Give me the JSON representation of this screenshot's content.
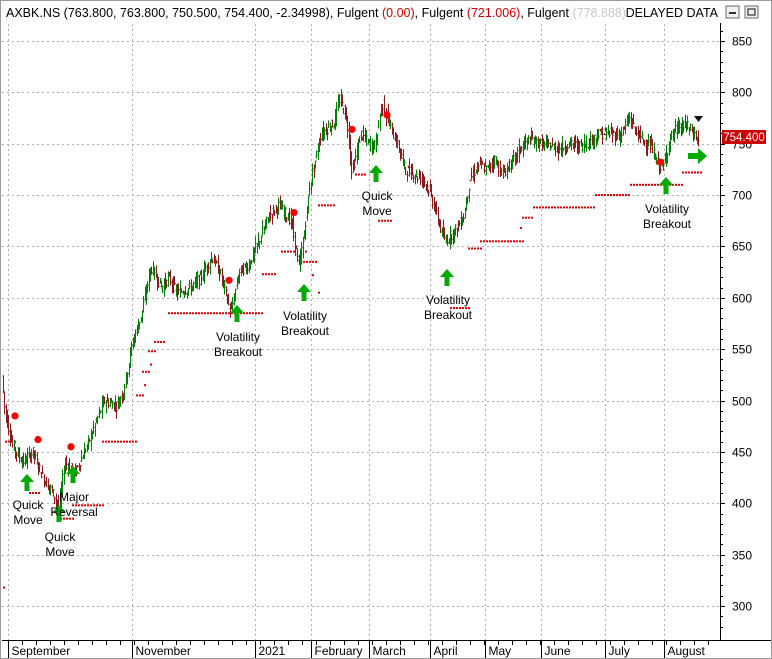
{
  "header": {
    "symbol": "AXBK.NS",
    "ohlc": "(763.800, 763.800, 750.500, 754.400, -2.34998)",
    "ind1_name": "Fulgent",
    "ind1_val": "(0.00)",
    "ind2_name": "Fulgent",
    "ind2_val": "(721.006)",
    "ind3_name": "Fulgent",
    "ind3_val": "(778.888)",
    "delayed": "DELAYED DATA",
    "colors": {
      "symbol": "#000000",
      "ind_name": "#000000",
      "ind_val": "#cc0000",
      "ind3_val": "#c8c8c8",
      "delayed": "#000000"
    }
  },
  "price_tag": {
    "value": "754.400",
    "bg": "#cc0000",
    "fg": "#ffffff"
  },
  "icons": {
    "minimize": "minimize-icon",
    "maximize": "maximize-icon",
    "arrow_right": "green-right-arrow-icon",
    "arrow_up": "green-up-arrow-icon",
    "last_bar_marker": "dark-chevron-marker-icon"
  },
  "chart_data": {
    "type": "candlestick-ohlc",
    "ylim": [
      275,
      865
    ],
    "y_ticks": [
      300,
      350,
      400,
      450,
      500,
      550,
      600,
      650,
      700,
      750,
      800,
      850
    ],
    "x_month_labels": [
      "September",
      "November",
      "2021",
      "February",
      "March",
      "April",
      "May",
      "June",
      "July",
      "August"
    ],
    "grid": true,
    "colors": {
      "up": "#008000",
      "down": "#8b1a1a",
      "stop_dots": "#e00000",
      "signal_dot": "#ff0000",
      "arrow": "#00aa00"
    },
    "price_path": [
      [
        0,
        460
      ],
      [
        2,
        535
      ],
      [
        6,
        490
      ],
      [
        14,
        455
      ],
      [
        24,
        440
      ],
      [
        34,
        450
      ],
      [
        44,
        425
      ],
      [
        54,
        410
      ],
      [
        60,
        395
      ],
      [
        66,
        440
      ],
      [
        76,
        430
      ],
      [
        90,
        460
      ],
      [
        105,
        500
      ],
      [
        118,
        495
      ],
      [
        125,
        510
      ],
      [
        133,
        555
      ],
      [
        143,
        585
      ],
      [
        152,
        630
      ],
      [
        163,
        610
      ],
      [
        170,
        620
      ],
      [
        178,
        605
      ],
      [
        192,
        610
      ],
      [
        202,
        620
      ],
      [
        213,
        640
      ],
      [
        222,
        622
      ],
      [
        232,
        585
      ],
      [
        240,
        625
      ],
      [
        250,
        632
      ],
      [
        262,
        660
      ],
      [
        270,
        680
      ],
      [
        280,
        690
      ],
      [
        292,
        675
      ],
      [
        300,
        630
      ],
      [
        305,
        660
      ],
      [
        311,
        710
      ],
      [
        322,
        760
      ],
      [
        335,
        770
      ],
      [
        341,
        795
      ],
      [
        348,
        772
      ],
      [
        353,
        722
      ],
      [
        362,
        760
      ],
      [
        370,
        750
      ],
      [
        376,
        748
      ],
      [
        383,
        790
      ],
      [
        392,
        765
      ],
      [
        400,
        745
      ],
      [
        406,
        725
      ],
      [
        416,
        720
      ],
      [
        425,
        715
      ],
      [
        432,
        700
      ],
      [
        441,
        670
      ],
      [
        446,
        655
      ],
      [
        451,
        660
      ],
      [
        456,
        665
      ],
      [
        465,
        680
      ],
      [
        471,
        715
      ],
      [
        480,
        730
      ],
      [
        488,
        725
      ],
      [
        496,
        735
      ],
      [
        503,
        720
      ],
      [
        512,
        730
      ],
      [
        521,
        745
      ],
      [
        531,
        755
      ],
      [
        541,
        750
      ],
      [
        551,
        748
      ],
      [
        561,
        745
      ],
      [
        571,
        750
      ],
      [
        581,
        748
      ],
      [
        591,
        752
      ],
      [
        601,
        760
      ],
      [
        611,
        760
      ],
      [
        621,
        758
      ],
      [
        631,
        775
      ],
      [
        637,
        762
      ],
      [
        645,
        752
      ],
      [
        652,
        748
      ],
      [
        658,
        732
      ],
      [
        664,
        727
      ],
      [
        671,
        755
      ],
      [
        678,
        765
      ],
      [
        688,
        768
      ],
      [
        696,
        758
      ],
      [
        699,
        754
      ]
    ],
    "stop_segments": [
      [
        5,
        16,
        460
      ],
      [
        29,
        40,
        410
      ],
      [
        60,
        72,
        385
      ],
      [
        72,
        102,
        398
      ],
      [
        102,
        136,
        460
      ],
      [
        136,
        142,
        505
      ],
      [
        142,
        148,
        528
      ],
      [
        148,
        154,
        548
      ],
      [
        154,
        164,
        557
      ],
      [
        168,
        263,
        585
      ],
      [
        262,
        275,
        623
      ],
      [
        281,
        293,
        645
      ],
      [
        300,
        316,
        635
      ],
      [
        318,
        335,
        690
      ],
      [
        355,
        365,
        720
      ],
      [
        378,
        390,
        675
      ],
      [
        450,
        468,
        590
      ],
      [
        468,
        480,
        648
      ],
      [
        480,
        522,
        655
      ],
      [
        522,
        533,
        678
      ],
      [
        533,
        595,
        688
      ],
      [
        595,
        630,
        700
      ],
      [
        630,
        663,
        710
      ],
      [
        663,
        682,
        710
      ],
      [
        682,
        700,
        722
      ]
    ],
    "signal_dots": [
      [
        15,
        485
      ],
      [
        38,
        462
      ],
      [
        71,
        455
      ],
      [
        229,
        617
      ],
      [
        294,
        683
      ],
      [
        352,
        764
      ],
      [
        387,
        778
      ],
      [
        660,
        732
      ]
    ],
    "signals": [
      {
        "label_lines": [
          "Quick",
          "Move"
        ],
        "x": 27,
        "arrow_tip_y": 474,
        "text_y": [
          509,
          524
        ]
      },
      {
        "label_lines": [
          "Quick",
          "Move"
        ],
        "x": 59,
        "arrow_tip_y": 505,
        "text_y": [
          541,
          556
        ]
      },
      {
        "label_lines": [
          "Major",
          "Reversal"
        ],
        "x": 73,
        "arrow_tip_y": 466,
        "text_y": [
          501,
          516
        ]
      },
      {
        "label_lines": [
          "Volatility",
          "Breakout"
        ],
        "x": 237,
        "arrow_tip_y": 305,
        "text_y": [
          341,
          356
        ]
      },
      {
        "label_lines": [
          "Volatility",
          "Breakout"
        ],
        "x": 304,
        "arrow_tip_y": 284,
        "text_y": [
          320,
          335
        ]
      },
      {
        "label_lines": [
          "Quick",
          "Move"
        ],
        "x": 376,
        "arrow_tip_y": 165,
        "text_y": [
          200,
          215
        ]
      },
      {
        "label_lines": [
          "Volatility",
          "Breakout"
        ],
        "x": 447,
        "arrow_tip_y": 269,
        "text_y": [
          304,
          319
        ]
      },
      {
        "label_lines": [
          "Volatility",
          "Breakout"
        ],
        "x": 666,
        "arrow_tip_y": 177,
        "text_y": [
          213,
          228
        ]
      }
    ]
  }
}
